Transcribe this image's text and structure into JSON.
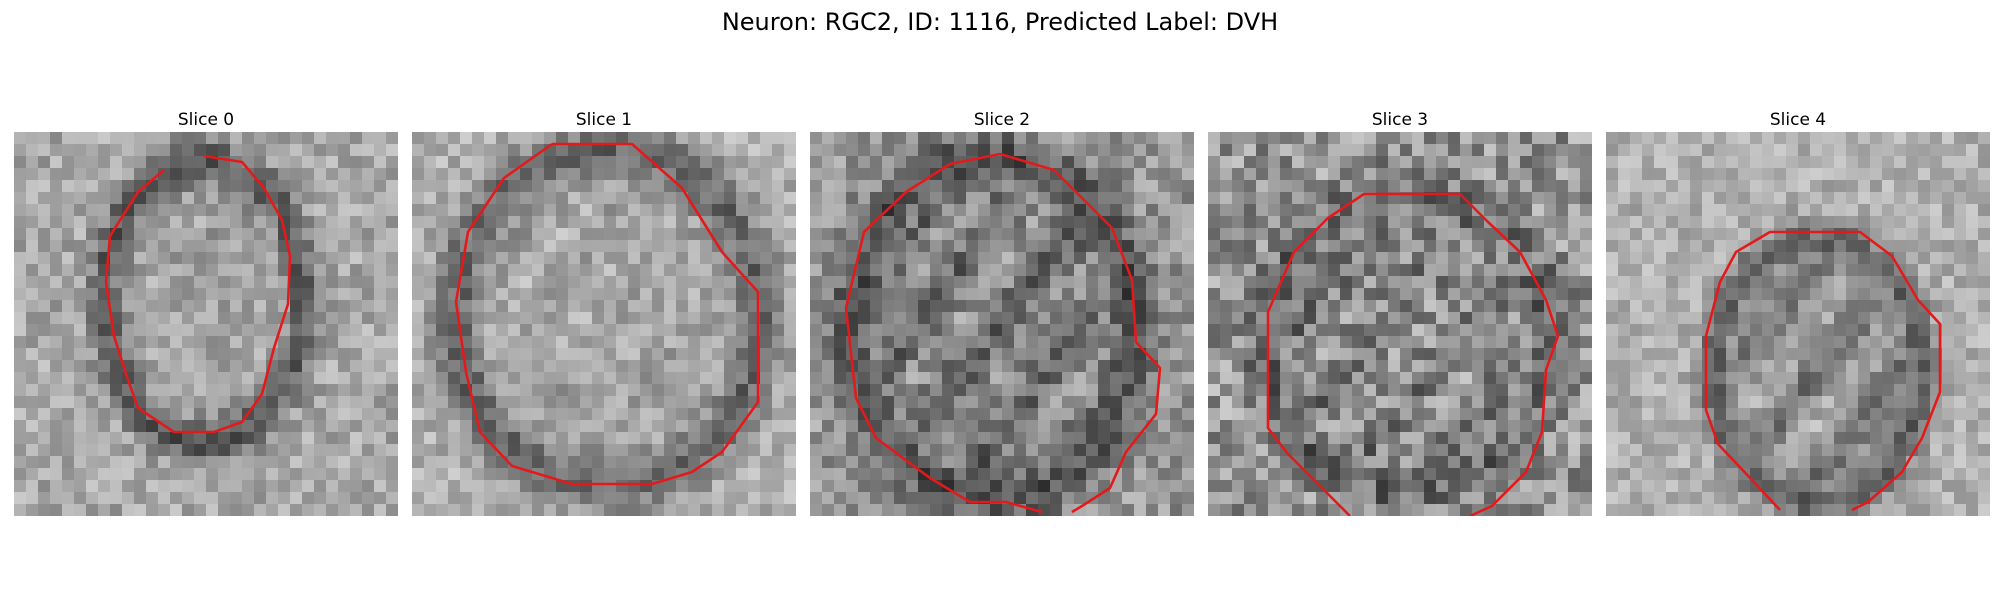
{
  "figure_title": "Neuron: RGC2, ID: 1116, Predicted Label: DVH",
  "colors": {
    "contour": "#e31a1c",
    "background": "#ffffff"
  },
  "panels": [
    {
      "title": "Slice 0"
    },
    {
      "title": "Slice 1"
    },
    {
      "title": "Slice 2"
    },
    {
      "title": "Slice 3"
    },
    {
      "title": "Slice 4"
    }
  ]
}
